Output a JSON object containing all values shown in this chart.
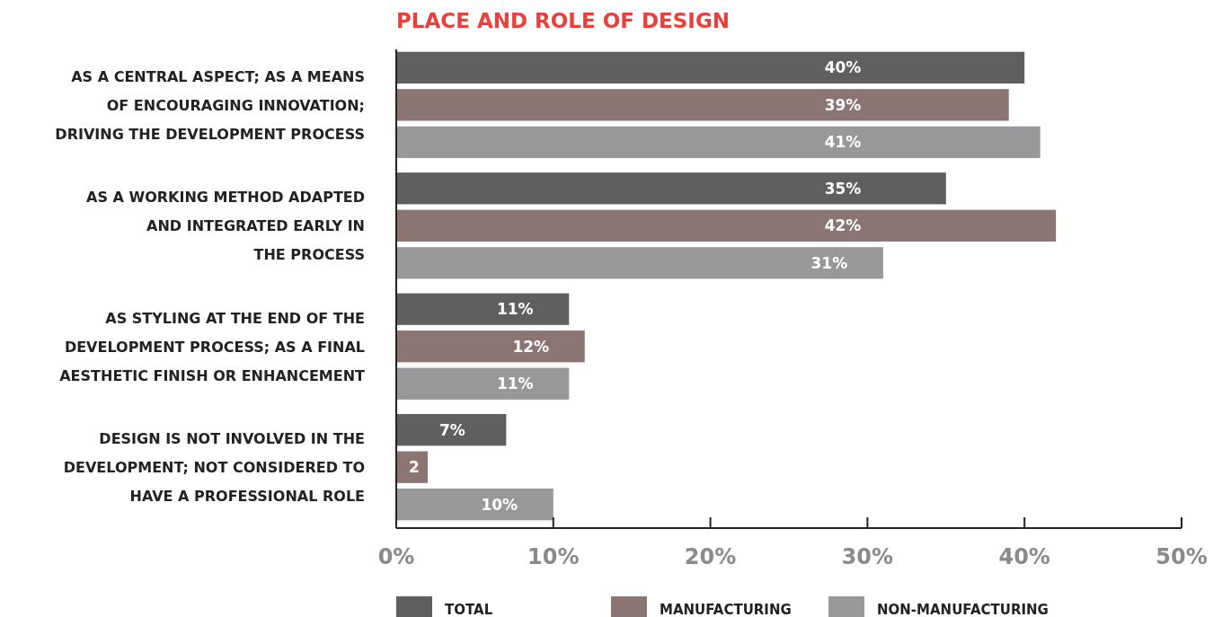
{
  "chart_data": {
    "type": "bar",
    "orientation": "horizontal",
    "title": "PLACE AND ROLE OF DESIGN",
    "categories": [
      "AS A CENTRAL ASPECT; AS A MEANS\nOF ENCOURAGING INNOVATION;\nDRIVING THE DEVELOPMENT PROCESS",
      "AS A WORKING METHOD ADAPTED\nAND INTEGRATED EARLY IN\nTHE PROCESS",
      "AS STYLING AT THE END OF THE\nDEVELOPMENT PROCESS; AS A FINAL\nAESTHETIC FINISH OR ENHANCEMENT",
      "DESIGN IS NOT INVOLVED IN THE\nDEVELOPMENT; NOT CONSIDERED TO\nHAVE A PROFESSIONAL ROLE"
    ],
    "series": [
      {
        "name": "TOTAL",
        "color": "#5f5e60",
        "values": [
          40,
          35,
          11,
          7
        ],
        "value_labels": [
          "40%",
          "35%",
          "11%",
          "7%"
        ]
      },
      {
        "name": "MANUFACTURING",
        "color": "#8a7573",
        "values": [
          39,
          42,
          12,
          2
        ],
        "value_labels": [
          "39%",
          "42%",
          "12%",
          "2"
        ]
      },
      {
        "name": "NON-MANUFACTURING",
        "color": "#98989b",
        "values": [
          41,
          31,
          11,
          10
        ],
        "value_labels": [
          "41%",
          "31%",
          "11%",
          "10%"
        ]
      }
    ],
    "xlim": [
      0,
      50
    ],
    "xticks": [
      {
        "value": 0,
        "label": "0%"
      },
      {
        "value": 10,
        "label": "10%"
      },
      {
        "value": 20,
        "label": "20%"
      },
      {
        "value": 30,
        "label": "30%"
      },
      {
        "value": 40,
        "label": "40%"
      },
      {
        "value": 50,
        "label": "50%"
      }
    ],
    "grid": false,
    "legend": "bottom"
  }
}
